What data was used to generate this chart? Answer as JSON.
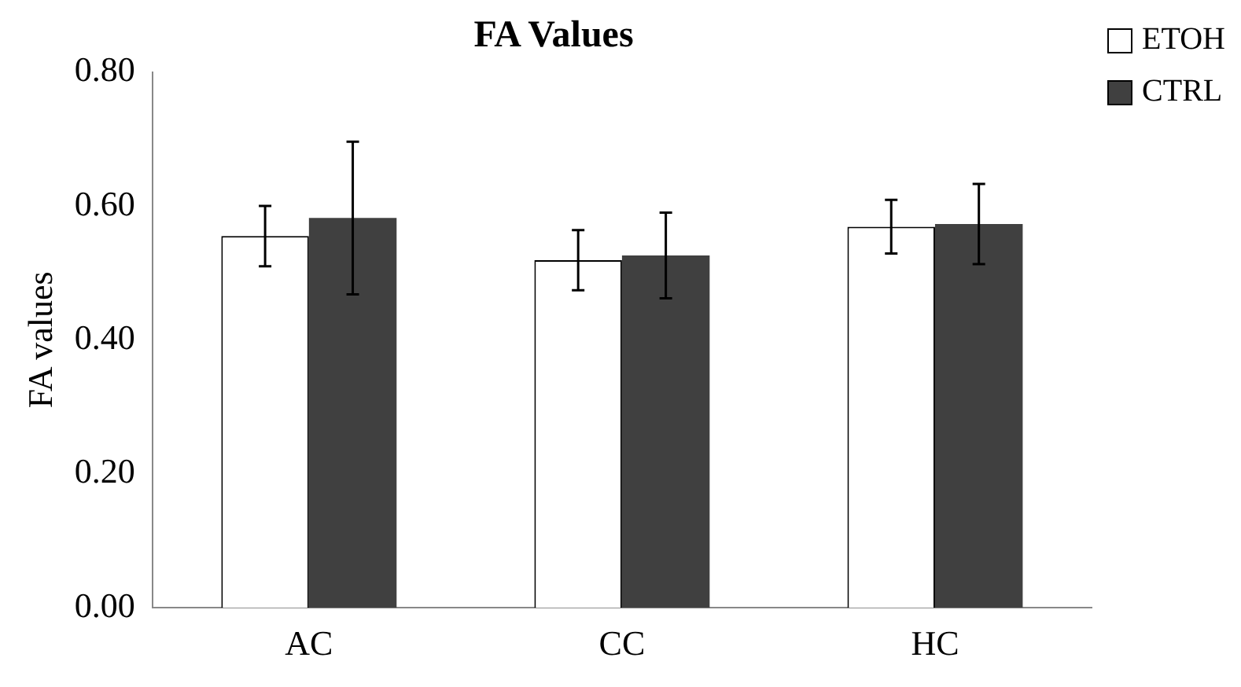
{
  "chart_data": {
    "type": "bar",
    "title": "FA Values",
    "ylabel": "FA values",
    "categories": [
      "AC",
      "CC",
      "HC"
    ],
    "series": [
      {
        "name": "ETOH",
        "color": "#ffffff",
        "values": [
          0.555,
          0.519,
          0.569
        ],
        "errors": [
          0.045,
          0.045,
          0.04
        ]
      },
      {
        "name": "CTRL",
        "color": "#404040",
        "values": [
          0.582,
          0.526,
          0.573
        ],
        "errors": [
          0.114,
          0.064,
          0.06
        ]
      }
    ],
    "ylim": [
      0,
      0.8
    ],
    "yticks": [
      {
        "value": 0,
        "label": "0.00"
      },
      {
        "value": 0.2,
        "label": "0.20"
      },
      {
        "value": 0.4,
        "label": "0.40"
      },
      {
        "value": 0.6,
        "label": "0.60"
      },
      {
        "value": 0.8,
        "label": "0.80"
      }
    ],
    "grid": false,
    "legend": "top right"
  }
}
